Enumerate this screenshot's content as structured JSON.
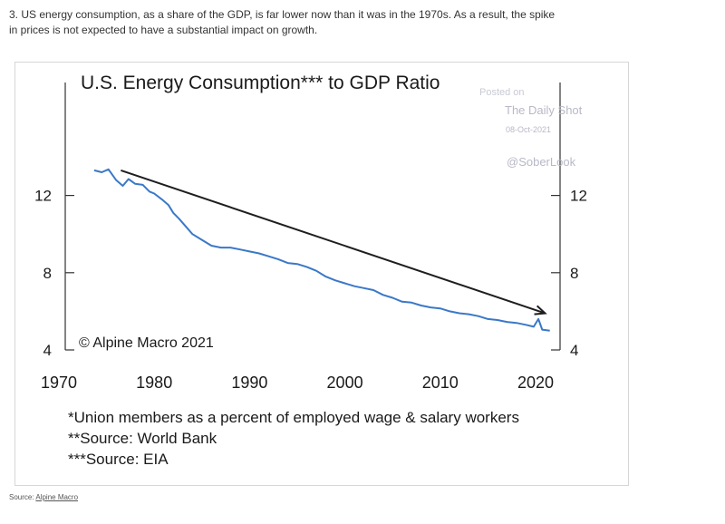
{
  "intro": {
    "line1": "3. US energy consumption, as a share of the GDP, is far lower now than it was in the 1970s. As a result, the spike",
    "line2": "in prices is not expected to have a substantial impact on growth."
  },
  "footer": {
    "label": "Source:",
    "link": "Alpine Macro"
  },
  "chart_data": {
    "type": "line",
    "title": "U.S. Energy Consumption*** to GDP Ratio",
    "xlim": [
      1970,
      2022
    ],
    "ylim": [
      4,
      14
    ],
    "x_ticks": [
      "1970",
      "1980",
      "1990",
      "2000",
      "2010",
      "2020"
    ],
    "y_ticks_left": [
      "12",
      "8",
      "4"
    ],
    "y_ticks_right": [
      "12",
      "8",
      "4"
    ],
    "x": [
      1973.7,
      1974.5,
      1975.2,
      1976,
      1976.7,
      1977.3,
      1978,
      1978.8,
      1979.5,
      1980,
      1980.8,
      1981.5,
      1982,
      1982.6,
      1983.3,
      1984,
      1985,
      1986,
      1987,
      1988,
      1989,
      1990,
      1991,
      1992,
      1993,
      1994,
      1995,
      1996,
      1997,
      1998,
      1999,
      2000,
      2001,
      2002,
      2003,
      2004,
      2005,
      2006,
      2007,
      2008,
      2009,
      2010,
      2011,
      2012,
      2013,
      2014,
      2015,
      2016,
      2017,
      2018,
      2019,
      2019.8,
      2020.3,
      2020.7,
      2021.5
    ],
    "values": [
      13.3,
      13.2,
      13.35,
      12.8,
      12.5,
      12.85,
      12.6,
      12.55,
      12.2,
      12.1,
      11.8,
      11.5,
      11.1,
      10.8,
      10.4,
      10.0,
      9.7,
      9.4,
      9.3,
      9.3,
      9.2,
      9.1,
      9.0,
      8.85,
      8.7,
      8.5,
      8.45,
      8.3,
      8.1,
      7.8,
      7.6,
      7.45,
      7.3,
      7.2,
      7.1,
      6.85,
      6.7,
      6.5,
      6.45,
      6.3,
      6.2,
      6.15,
      6.0,
      5.9,
      5.85,
      5.75,
      5.6,
      5.55,
      5.45,
      5.4,
      5.3,
      5.2,
      5.6,
      5.05,
      5.0
    ],
    "trend_arrow": {
      "x": [
        1976.5,
        2021
      ],
      "y": [
        13.3,
        5.9
      ]
    },
    "annotation": "© Alpine Macro 2021",
    "footnotes": [
      "*Union members as a percent of employed wage & salary workers",
      "**Source: World Bank",
      "***Source: EIA"
    ],
    "watermark": [
      "Posted on",
      "The Daily Shot",
      "08-Oct-2021",
      "@SoberLook"
    ],
    "series_color": "#3a78c8",
    "arrow_color": "#1e1e1e"
  }
}
